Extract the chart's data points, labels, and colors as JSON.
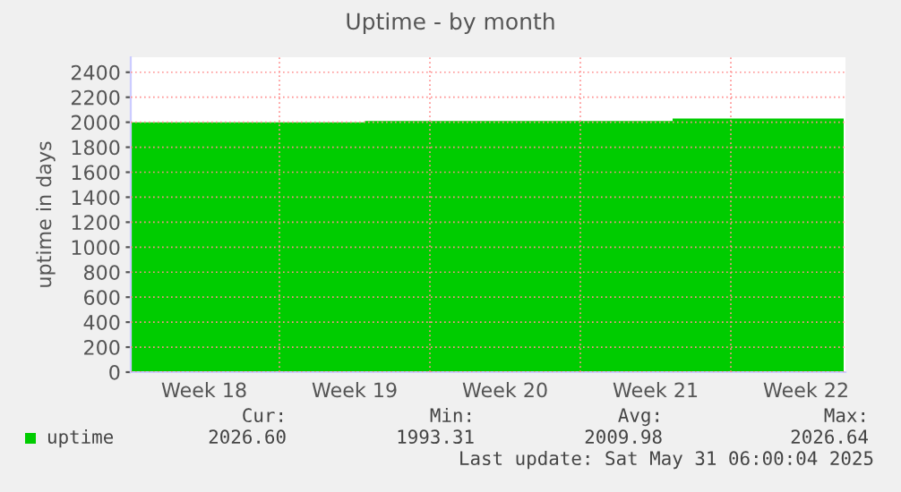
{
  "chart_data": {
    "type": "area",
    "title": "Uptime - by month",
    "ylabel": "uptime in days",
    "x": [
      "2025-04-28T02:00",
      "2025-05-08T23:30",
      "2025-05-08T23:30",
      "2025-05-23T07:00",
      "2025-05-23T07:00",
      "2025-05-31T06:00"
    ],
    "series": [
      {
        "name": "uptime",
        "color": "#00cc00",
        "values": [
          2000,
          2000,
          2010,
          2010,
          2030,
          2030
        ]
      }
    ],
    "xlim": [
      "2025-04-28T02:00",
      "2025-05-31T08:00"
    ],
    "xticks": [
      {
        "value": "2025-05-01T12:00",
        "label": "Week 18"
      },
      {
        "value": "2025-05-05",
        "label": null
      },
      {
        "value": "2025-05-08T12:00",
        "label": "Week 19"
      },
      {
        "value": "2025-05-12",
        "label": null
      },
      {
        "value": "2025-05-15T12:00",
        "label": "Week 20"
      },
      {
        "value": "2025-05-19",
        "label": null
      },
      {
        "value": "2025-05-22T12:00",
        "label": "Week 21"
      },
      {
        "value": "2025-05-26",
        "label": null
      },
      {
        "value": "2025-05-29T12:00",
        "label": "Week 22"
      }
    ],
    "ylim": [
      0,
      2520
    ],
    "yticks": [
      0,
      200,
      400,
      600,
      800,
      1000,
      1200,
      1400,
      1600,
      1800,
      2000,
      2200,
      2400
    ],
    "grid": true,
    "legend": "bottom left",
    "annotations": [
      "Cur:",
      "Min:",
      "Avg:",
      "Max:",
      "2026.60",
      "1993.31",
      "2009.98",
      "2026.64",
      "Last update: Sat May 31 06:00:04 2025"
    ]
  }
}
